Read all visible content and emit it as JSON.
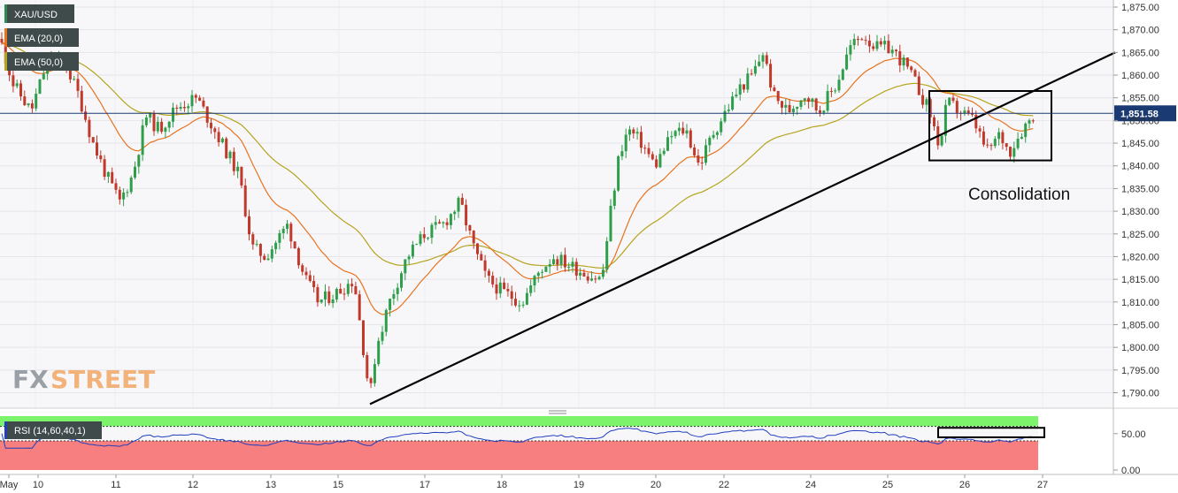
{
  "chart_data": {
    "type": "candlestick",
    "symbol": "XAU/USD",
    "indicators": [
      {
        "name": "EMA (20,0)",
        "color": "#e8731e"
      },
      {
        "name": "EMA (50,0)",
        "color": "#b5a41e"
      }
    ],
    "y_axis": {
      "ylim": [
        1786,
        1876
      ],
      "ticks": [
        "1,875.00",
        "1,870.00",
        "1,865.00",
        "1,860.00",
        "1,855.00",
        "1,850.00",
        "1,845.00",
        "1,840.00",
        "1,835.00",
        "1,830.00",
        "1,825.00",
        "1,820.00",
        "1,815.00",
        "1,810.00",
        "1,805.00",
        "1,800.00",
        "1,795.00",
        "1,790.00"
      ],
      "tick_values": [
        1875,
        1870,
        1865,
        1860,
        1855,
        1850,
        1845,
        1840,
        1835,
        1830,
        1825,
        1820,
        1815,
        1810,
        1805,
        1800,
        1795,
        1790
      ]
    },
    "x_axis": {
      "labels": [
        "May",
        "10",
        "11",
        "12",
        "13",
        "15",
        "17",
        "18",
        "19",
        "20",
        "22",
        "24",
        "25",
        "26",
        "27"
      ]
    },
    "current_price": {
      "value": 1851.58,
      "label": "1,851.58",
      "color": "#1a3a73"
    },
    "waypoints": [
      [
        0,
        1868
      ],
      [
        15,
        1858
      ],
      [
        35,
        1852
      ],
      [
        55,
        1864
      ],
      [
        75,
        1862
      ],
      [
        90,
        1855
      ],
      [
        105,
        1845
      ],
      [
        120,
        1838
      ],
      [
        135,
        1832
      ],
      [
        150,
        1838
      ],
      [
        165,
        1851
      ],
      [
        180,
        1848
      ],
      [
        200,
        1853
      ],
      [
        222,
        1855
      ],
      [
        245,
        1847
      ],
      [
        270,
        1838
      ],
      [
        285,
        1822
      ],
      [
        300,
        1820
      ],
      [
        325,
        1827
      ],
      [
        345,
        1815
      ],
      [
        360,
        1810
      ],
      [
        380,
        1812
      ],
      [
        400,
        1815
      ],
      [
        418,
        1789
      ],
      [
        425,
        1800
      ],
      [
        440,
        1810
      ],
      [
        460,
        1820
      ],
      [
        480,
        1825
      ],
      [
        500,
        1827
      ],
      [
        520,
        1832
      ],
      [
        535,
        1822
      ],
      [
        550,
        1815
      ],
      [
        570,
        1812
      ],
      [
        590,
        1810
      ],
      [
        610,
        1817
      ],
      [
        625,
        1820
      ],
      [
        645,
        1818
      ],
      [
        665,
        1816
      ],
      [
        680,
        1815
      ],
      [
        690,
        1830
      ],
      [
        700,
        1843
      ],
      [
        710,
        1848
      ],
      [
        725,
        1845
      ],
      [
        740,
        1840
      ],
      [
        760,
        1847
      ],
      [
        775,
        1848
      ],
      [
        790,
        1840
      ],
      [
        805,
        1847
      ],
      [
        820,
        1852
      ],
      [
        835,
        1857
      ],
      [
        850,
        1860
      ],
      [
        862,
        1865
      ],
      [
        875,
        1855
      ],
      [
        890,
        1852
      ],
      [
        910,
        1856
      ],
      [
        925,
        1852
      ],
      [
        945,
        1858
      ],
      [
        960,
        1866
      ],
      [
        975,
        1869
      ],
      [
        990,
        1866
      ],
      [
        1005,
        1866
      ],
      [
        1020,
        1863
      ],
      [
        1035,
        1858
      ],
      [
        1050,
        1852
      ],
      [
        1062,
        1844
      ],
      [
        1070,
        1854
      ],
      [
        1085,
        1852
      ],
      [
        1100,
        1850
      ],
      [
        1115,
        1843
      ],
      [
        1130,
        1847
      ],
      [
        1140,
        1843
      ],
      [
        1155,
        1848
      ],
      [
        1170,
        1852
      ]
    ],
    "trendline": {
      "from": [
        418,
        1787.5
      ],
      "to": [
        1260,
        1865.0
      ],
      "color": "#000000"
    },
    "consolidation_box": {
      "x": [
        1050,
        1188
      ],
      "y": [
        1856.5,
        1841.2
      ]
    },
    "annotation": "Consolidation",
    "rsi": {
      "name": "RSI (14,60,40,1)",
      "ticks": [
        "50.00",
        "0.00"
      ],
      "tick_values": [
        50,
        0
      ],
      "upper_level": 60,
      "lower_level": 40,
      "color": "#1f3fbf",
      "upper_zone_color": "#7cf36a",
      "lower_zone_color": "#f77f7f",
      "box": {
        "x": [
          1060,
          1180
        ],
        "y": [
          58,
          45
        ]
      }
    },
    "grid": true
  },
  "branding": {
    "fx": "FX",
    "street": "STREET"
  }
}
